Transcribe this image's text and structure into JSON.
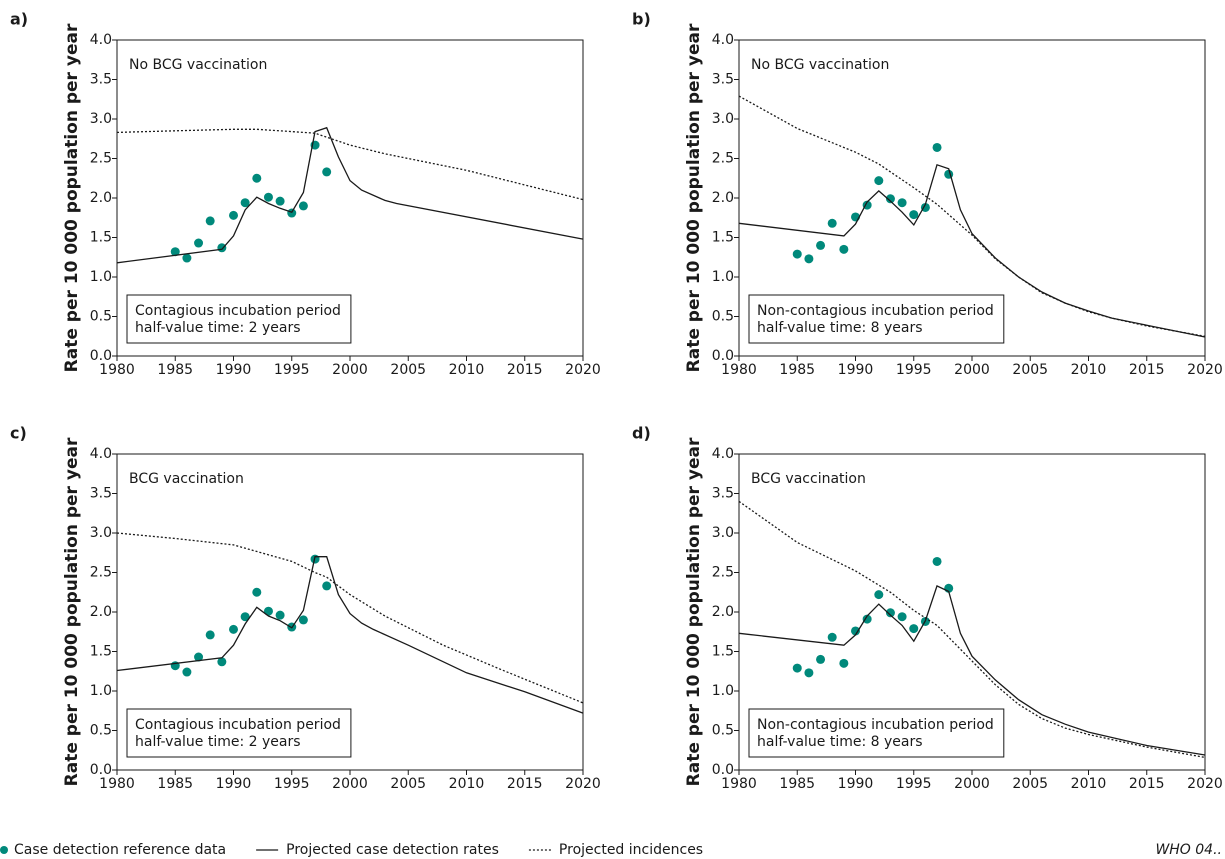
{
  "chart_data": [
    {
      "type": "line",
      "title": "a)",
      "ylabel": "Rate per 10 000 population per year",
      "annotation": "No BCG vaccination",
      "note": [
        "Contagious incubation period",
        "half-value time: 2 years"
      ],
      "xlim": [
        1980,
        2020
      ],
      "ylim": [
        0,
        4
      ],
      "xticks": [
        1980,
        1985,
        1990,
        1995,
        2000,
        2005,
        2010,
        2015,
        2020
      ],
      "yticks": [
        {
          "value": 0,
          "label": "0.0"
        },
        {
          "value": 0.5,
          "label": "0.5"
        },
        {
          "value": 1,
          "label": "1.0"
        },
        {
          "value": 1.5,
          "label": "1.5"
        },
        {
          "value": 2,
          "label": "2.0"
        },
        {
          "value": 2.5,
          "label": "2.5"
        },
        {
          "value": 3,
          "label": "3.0"
        },
        {
          "value": 3.5,
          "label": "3.5"
        },
        {
          "value": 4,
          "label": "4.0"
        }
      ],
      "series": [
        {
          "style": "dots",
          "color": "#00897b",
          "x": [
            1985,
            1986,
            1987,
            1988,
            1989,
            1990,
            1991,
            1992,
            1993,
            1994,
            1995,
            1996,
            1997,
            1998
          ],
          "values": [
            1.32,
            1.24,
            1.43,
            1.71,
            1.37,
            1.78,
            1.94,
            2.25,
            2.01,
            1.96,
            1.81,
            1.9,
            2.67,
            2.33
          ]
        },
        {
          "style": "solid",
          "color": "#1a1a1a",
          "x": [
            1980,
            1989,
            1990,
            1991,
            1992,
            1993,
            1994,
            1995,
            1996,
            1997,
            1998,
            1999,
            2000,
            2001,
            2003,
            2004,
            2020
          ],
          "values": [
            1.18,
            1.35,
            1.52,
            1.85,
            2.01,
            1.93,
            1.87,
            1.82,
            2.07,
            2.84,
            2.89,
            2.52,
            2.22,
            2.1,
            1.97,
            1.93,
            1.48
          ]
        },
        {
          "style": "dotted",
          "color": "#1a1a1a",
          "x": [
            1980,
            1985,
            1990,
            1992,
            1995,
            1997,
            2000,
            2003,
            2010,
            2020
          ],
          "values": [
            2.83,
            2.85,
            2.87,
            2.87,
            2.84,
            2.82,
            2.67,
            2.56,
            2.35,
            1.98
          ]
        }
      ]
    },
    {
      "type": "line",
      "title": "b)",
      "ylabel": "Rate per 10 000 population per year",
      "annotation": "No BCG vaccination",
      "note": [
        "Non-contagious incubation period",
        "half-value time: 8 years"
      ],
      "xlim": [
        1980,
        2020
      ],
      "ylim": [
        0,
        4
      ],
      "xticks": [
        1980,
        1985,
        1990,
        1995,
        2000,
        2005,
        2010,
        2015,
        2020
      ],
      "yticks": [
        {
          "value": 0,
          "label": "0.0"
        },
        {
          "value": 0.5,
          "label": "0.5"
        },
        {
          "value": 1,
          "label": "1.0"
        },
        {
          "value": 1.5,
          "label": "1.5"
        },
        {
          "value": 2,
          "label": "2.0"
        },
        {
          "value": 2.5,
          "label": "2.5"
        },
        {
          "value": 3,
          "label": "3.0"
        },
        {
          "value": 3.5,
          "label": "3.5"
        },
        {
          "value": 4,
          "label": "4.0"
        }
      ],
      "series": [
        {
          "style": "dots",
          "color": "#00897b",
          "x": [
            1985,
            1986,
            1987,
            1988,
            1989,
            1990,
            1991,
            1992,
            1993,
            1994,
            1995,
            1996,
            1997,
            1998
          ],
          "values": [
            1.29,
            1.23,
            1.4,
            1.68,
            1.35,
            1.76,
            1.91,
            2.22,
            1.99,
            1.94,
            1.79,
            1.88,
            2.64,
            2.3
          ]
        },
        {
          "style": "solid",
          "color": "#1a1a1a",
          "x": [
            1980,
            1989,
            1990,
            1991,
            1992,
            1993,
            1994,
            1995,
            1996,
            1997,
            1998,
            1999,
            2000,
            2002,
            2004,
            2006,
            2008,
            2010,
            2012,
            2015,
            2020
          ],
          "values": [
            1.68,
            1.52,
            1.67,
            1.95,
            2.09,
            1.96,
            1.82,
            1.66,
            1.92,
            2.42,
            2.37,
            1.85,
            1.55,
            1.24,
            1.0,
            0.81,
            0.67,
            0.57,
            0.48,
            0.39,
            0.24
          ]
        },
        {
          "style": "dotted",
          "color": "#1a1a1a",
          "x": [
            1980,
            1985,
            1990,
            1992,
            1995,
            1997,
            2000,
            2002,
            2004,
            2006,
            2008,
            2010,
            2012,
            2015,
            2020
          ],
          "values": [
            3.29,
            2.88,
            2.58,
            2.43,
            2.13,
            1.92,
            1.53,
            1.23,
            1.0,
            0.8,
            0.67,
            0.56,
            0.48,
            0.38,
            0.25
          ]
        }
      ]
    },
    {
      "type": "line",
      "title": "c)",
      "ylabel": "Rate per 10 000 population per year",
      "annotation": "BCG vaccination",
      "note": [
        "Contagious incubation period",
        "half-value time: 2 years"
      ],
      "xlim": [
        1980,
        2020
      ],
      "ylim": [
        0,
        4
      ],
      "xticks": [
        1980,
        1985,
        1990,
        1995,
        2000,
        2005,
        2010,
        2015,
        2020
      ],
      "yticks": [
        {
          "value": 0,
          "label": "0.0"
        },
        {
          "value": 0.5,
          "label": "0.5"
        },
        {
          "value": 1,
          "label": "1.0"
        },
        {
          "value": 1.5,
          "label": "1.5"
        },
        {
          "value": 2,
          "label": "2.0"
        },
        {
          "value": 2.5,
          "label": "2.5"
        },
        {
          "value": 3,
          "label": "3.0"
        },
        {
          "value": 3.5,
          "label": "3.5"
        },
        {
          "value": 4,
          "label": "4.0"
        }
      ],
      "series": [
        {
          "style": "dots",
          "color": "#00897b",
          "x": [
            1985,
            1986,
            1987,
            1988,
            1989,
            1990,
            1991,
            1992,
            1993,
            1994,
            1995,
            1996,
            1997,
            1998
          ],
          "values": [
            1.32,
            1.24,
            1.43,
            1.71,
            1.37,
            1.78,
            1.94,
            2.25,
            2.01,
            1.96,
            1.81,
            1.9,
            2.67,
            2.33
          ]
        },
        {
          "style": "solid",
          "color": "#1a1a1a",
          "x": [
            1980,
            1989,
            1990,
            1991,
            1992,
            1993,
            1994,
            1995,
            1996,
            1997,
            1998,
            1999,
            2000,
            2001,
            2002,
            2005,
            2010,
            2015,
            2020
          ],
          "values": [
            1.26,
            1.42,
            1.58,
            1.85,
            2.06,
            1.95,
            1.89,
            1.8,
            2.02,
            2.7,
            2.7,
            2.22,
            1.98,
            1.86,
            1.78,
            1.58,
            1.23,
            0.99,
            0.72
          ]
        },
        {
          "style": "dotted",
          "color": "#1a1a1a",
          "x": [
            1980,
            1985,
            1990,
            1995,
            1997,
            1998,
            2000,
            2003,
            2008,
            2013,
            2020
          ],
          "values": [
            3.0,
            2.93,
            2.85,
            2.64,
            2.5,
            2.44,
            2.22,
            1.95,
            1.58,
            1.27,
            0.85
          ]
        }
      ]
    },
    {
      "type": "line",
      "title": "d)",
      "ylabel": "Rate per 10 000 population per year",
      "annotation": "BCG vaccination",
      "note": [
        "Non-contagious incubation period",
        "half-value time: 8 years"
      ],
      "xlim": [
        1980,
        2020
      ],
      "ylim": [
        0,
        4
      ],
      "xticks": [
        1980,
        1985,
        1990,
        1995,
        2000,
        2005,
        2010,
        2015,
        2020
      ],
      "yticks": [
        {
          "value": 0,
          "label": "0.0"
        },
        {
          "value": 0.5,
          "label": "0.5"
        },
        {
          "value": 1,
          "label": "1.0"
        },
        {
          "value": 1.5,
          "label": "1.5"
        },
        {
          "value": 2,
          "label": "2.0"
        },
        {
          "value": 2.5,
          "label": "2.5"
        },
        {
          "value": 3,
          "label": "3.0"
        },
        {
          "value": 3.5,
          "label": "3.5"
        },
        {
          "value": 4,
          "label": "4.0"
        }
      ],
      "series": [
        {
          "style": "dots",
          "color": "#00897b",
          "x": [
            1985,
            1986,
            1987,
            1988,
            1989,
            1990,
            1991,
            1992,
            1993,
            1994,
            1995,
            1996,
            1997,
            1998
          ],
          "values": [
            1.29,
            1.23,
            1.4,
            1.68,
            1.35,
            1.76,
            1.91,
            2.22,
            1.99,
            1.94,
            1.79,
            1.88,
            2.64,
            2.3
          ]
        },
        {
          "style": "solid",
          "color": "#1a1a1a",
          "x": [
            1980,
            1989,
            1990,
            1991,
            1992,
            1993,
            1994,
            1995,
            1996,
            1997,
            1998,
            1999,
            2000,
            2002,
            2004,
            2006,
            2008,
            2010,
            2015,
            2020
          ],
          "values": [
            1.73,
            1.58,
            1.71,
            1.95,
            2.1,
            1.96,
            1.83,
            1.63,
            1.89,
            2.33,
            2.26,
            1.73,
            1.44,
            1.14,
            0.89,
            0.7,
            0.58,
            0.48,
            0.31,
            0.19
          ]
        },
        {
          "style": "dotted",
          "color": "#1a1a1a",
          "x": [
            1980,
            1985,
            1990,
            1993,
            1995,
            1997,
            2000,
            2002,
            2004,
            2006,
            2008,
            2010,
            2015,
            2020
          ],
          "values": [
            3.4,
            2.88,
            2.52,
            2.25,
            2.02,
            1.83,
            1.38,
            1.08,
            0.83,
            0.65,
            0.53,
            0.45,
            0.29,
            0.16
          ]
        }
      ]
    }
  ],
  "legend": [
    {
      "label": "Case detection reference data",
      "style": "dots",
      "color": "#00897b"
    },
    {
      "label": "Projected case detection rates",
      "style": "solid",
      "color": "#1a1a1a"
    },
    {
      "label": "Projected incidences",
      "style": "dotted",
      "color": "#1a1a1a"
    }
  ],
  "source": "WHO 04.."
}
